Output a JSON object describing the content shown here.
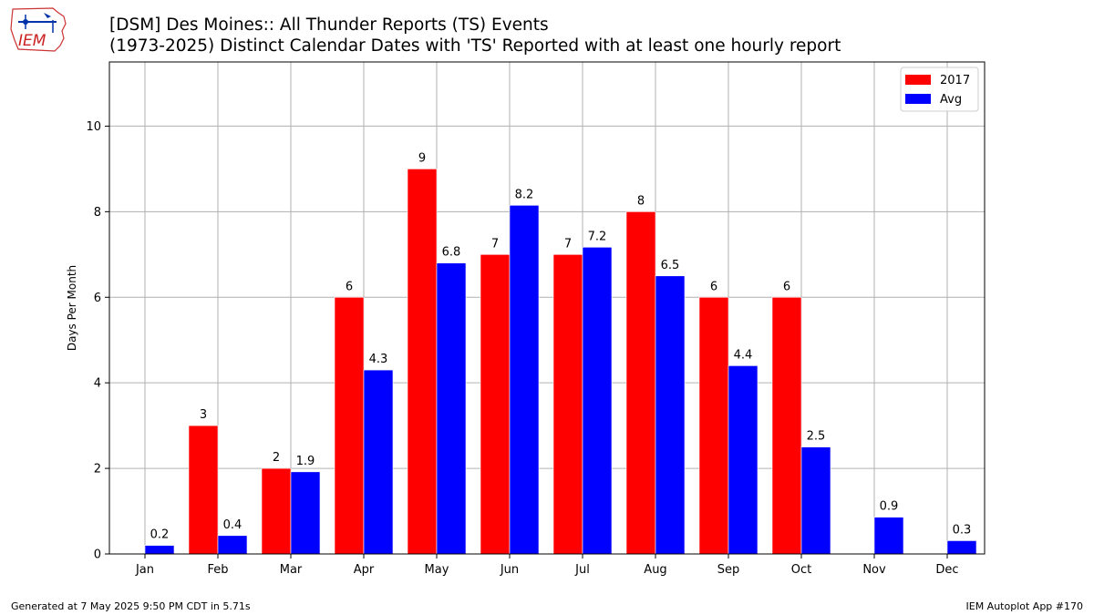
{
  "header": {
    "title_line1": "[DSM] Des Moines:: All Thunder Reports (TS) Events",
    "title_line2": "(1973-2025) Distinct Calendar Dates with 'TS' Reported with at least one hourly report",
    "logo_text": "IEM"
  },
  "footer": {
    "generated": "Generated at 7 May 2025 9:50 PM CDT in 5.71s",
    "app": "IEM Autoplot App #170"
  },
  "chart_data": {
    "type": "bar",
    "title": "[DSM] Des Moines:: All Thunder Reports (TS) Events",
    "subtitle": "(1973-2025) Distinct Calendar Dates with 'TS' Reported with at least one hourly report",
    "xlabel": "",
    "ylabel": "Days Per Month",
    "categories": [
      "Jan",
      "Feb",
      "Mar",
      "Apr",
      "May",
      "Jun",
      "Jul",
      "Aug",
      "Sep",
      "Oct",
      "Nov",
      "Dec"
    ],
    "series": [
      {
        "name": "2017",
        "color": "#ff0000",
        "values": [
          0,
          3,
          2,
          6,
          9,
          7,
          7,
          8,
          6,
          6,
          0,
          0
        ],
        "labels": [
          "",
          "3",
          "2",
          "6",
          "9",
          "7",
          "7",
          "8",
          "6",
          "6",
          "",
          ""
        ]
      },
      {
        "name": "Avg",
        "color": "#0000ff",
        "values": [
          0.2,
          0.43,
          1.92,
          4.3,
          6.8,
          8.15,
          7.17,
          6.5,
          4.4,
          2.5,
          0.86,
          0.31
        ],
        "labels": [
          "0.2",
          "0.4",
          "1.9",
          "4.3",
          "6.8",
          "8.2",
          "7.2",
          "6.5",
          "4.4",
          "2.5",
          "0.9",
          "0.3"
        ]
      }
    ],
    "yticks": [
      0,
      2,
      4,
      6,
      8,
      10
    ],
    "ylim": [
      0,
      11.5
    ],
    "grid": true,
    "legend": "top-right"
  }
}
